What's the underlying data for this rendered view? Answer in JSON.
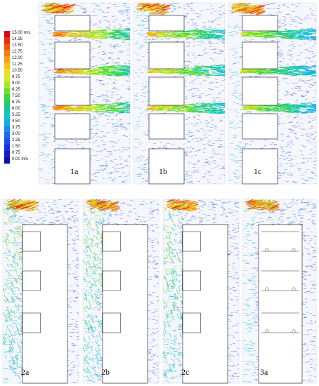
{
  "legend": {
    "unit": "m/s",
    "levels": [
      {
        "label": "15.00 m/s",
        "color": "#e0001a"
      },
      {
        "label": "14.25",
        "color": "#ee2a10"
      },
      {
        "label": "13.50",
        "color": "#f55210"
      },
      {
        "label": "12.75",
        "color": "#f87a10"
      },
      {
        "label": "12.00",
        "color": "#fa9e12"
      },
      {
        "label": "11.25",
        "color": "#f7c01a"
      },
      {
        "label": "10.50",
        "color": "#efde20"
      },
      {
        "label": "9.75",
        "color": "#d2ec22"
      },
      {
        "label": "9.00",
        "color": "#a8ea22"
      },
      {
        "label": "8.25",
        "color": "#72e028"
      },
      {
        "label": "7.50",
        "color": "#3ad83a"
      },
      {
        "label": "6.75",
        "color": "#1ece6a"
      },
      {
        "label": "6.00",
        "color": "#12c8a0"
      },
      {
        "label": "5.25",
        "color": "#0cc6c8"
      },
      {
        "label": "4.50",
        "color": "#12aee6"
      },
      {
        "label": "3.75",
        "color": "#1a8cf0"
      },
      {
        "label": "3.00",
        "color": "#1a6cf4"
      },
      {
        "label": "2.25",
        "color": "#1a4cf0"
      },
      {
        "label": "1.50",
        "color": "#1a30e6"
      },
      {
        "label": "0.75",
        "color": "#1818d0"
      },
      {
        "label": "0.00 m/s",
        "color": "#0e0ea8"
      }
    ]
  },
  "panels": [
    {
      "id": "1a",
      "label": "1a",
      "variant": "gaps",
      "jet": 1.0
    },
    {
      "id": "1b",
      "label": "1b",
      "variant": "gaps",
      "jet": 0.85
    },
    {
      "id": "1c",
      "label": "1c",
      "variant": "gaps",
      "jet": 0.75
    },
    {
      "id": "2a",
      "label": "2a",
      "variant": "recess",
      "jet": 0.7
    },
    {
      "id": "2b",
      "label": "2b",
      "variant": "recess",
      "jet": 0.55
    },
    {
      "id": "2c",
      "label": "2c",
      "variant": "recess",
      "jet": 0.4
    },
    {
      "id": "3a",
      "label": "3a",
      "variant": "closed",
      "jet": 0.2
    }
  ]
}
